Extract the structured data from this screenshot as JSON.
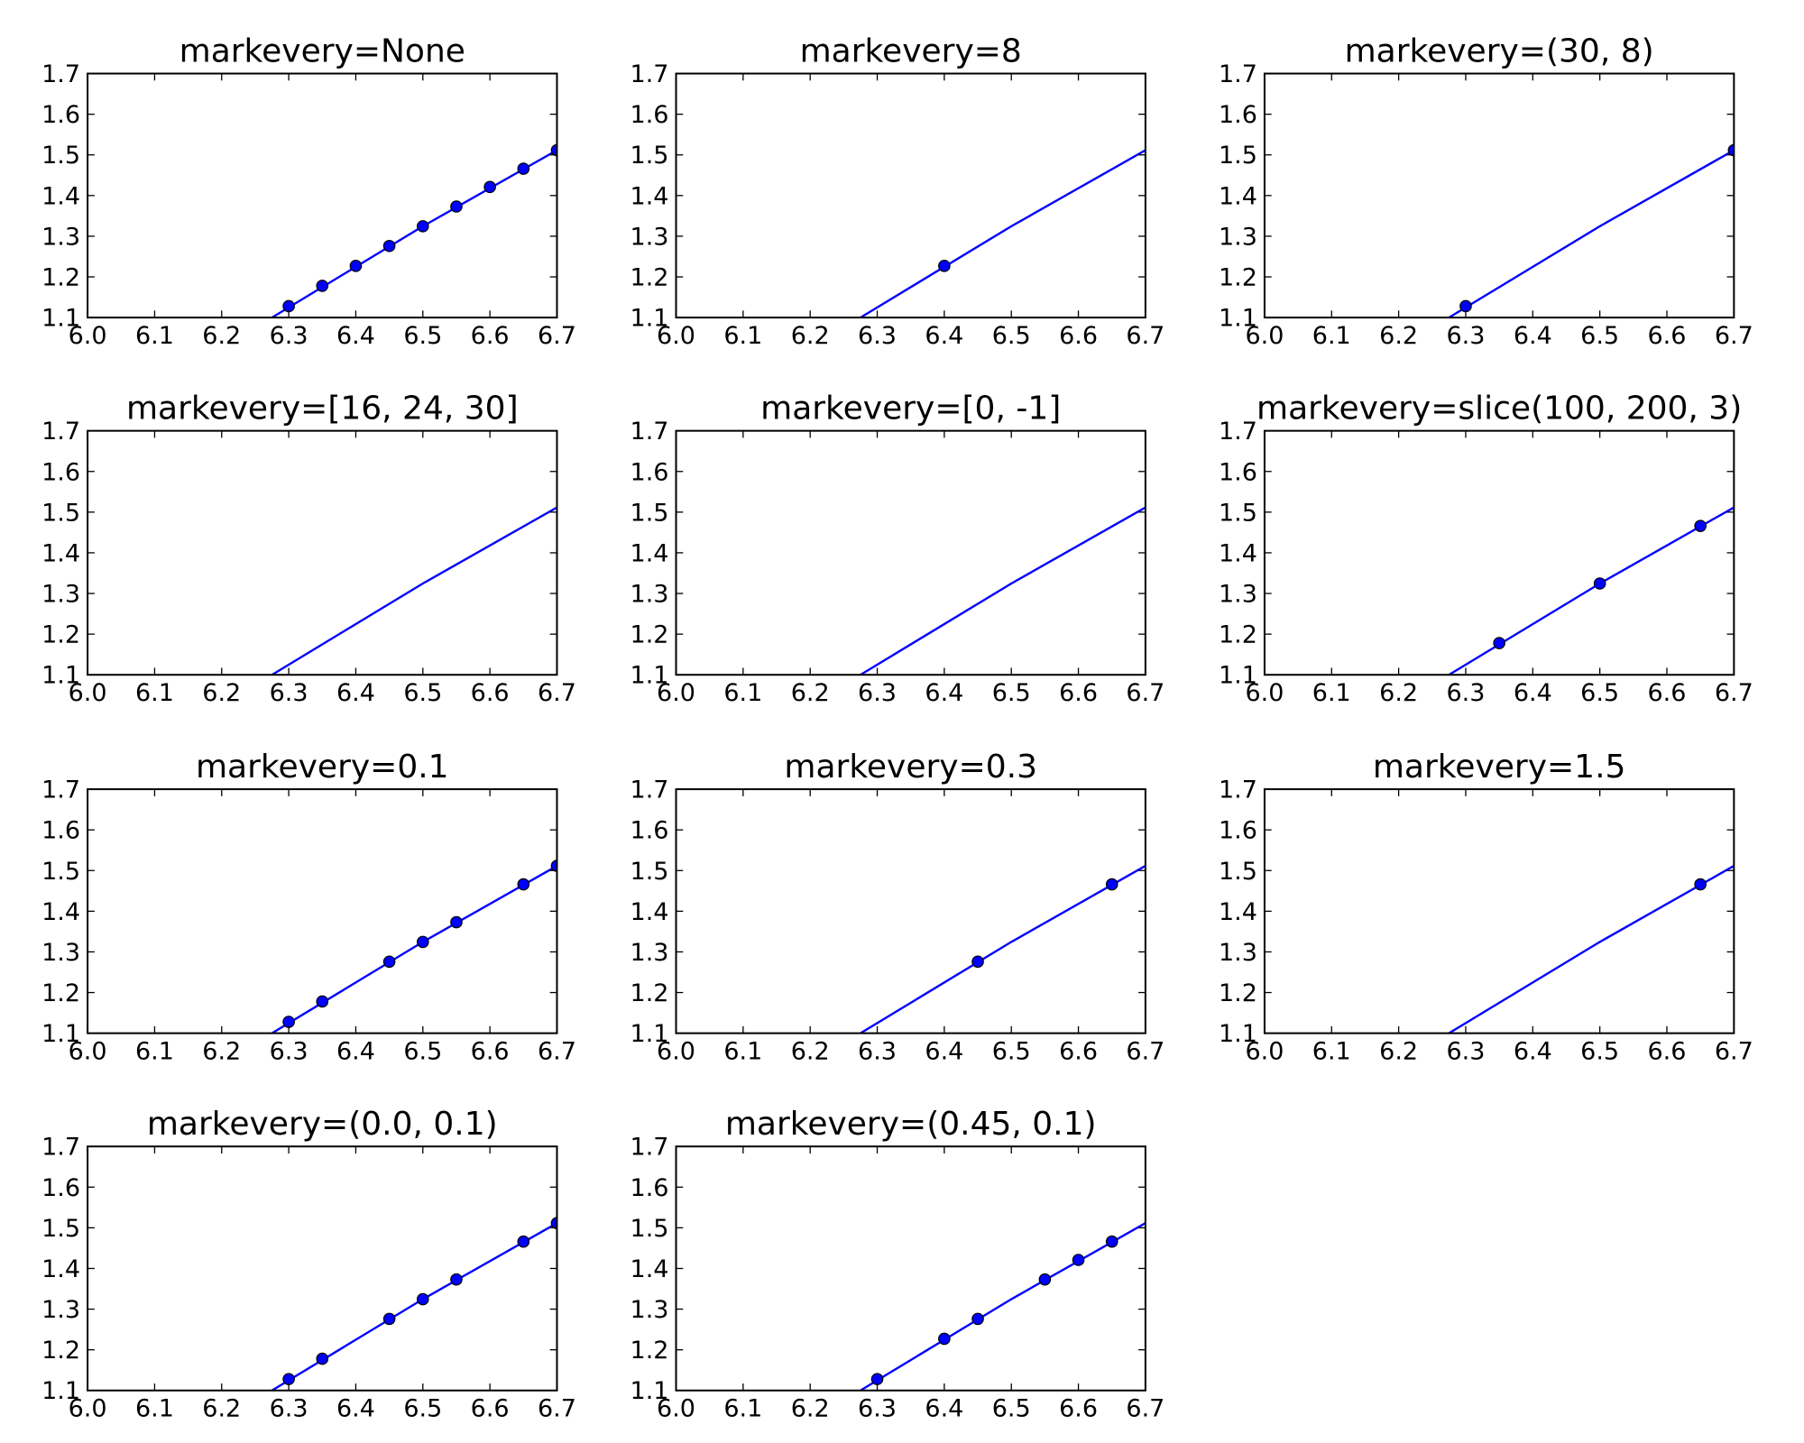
{
  "figure": {
    "line_color": "#0000ff",
    "marker_color": "#0000ff",
    "marker_edge_color": "#000000",
    "background": "#ffffff"
  },
  "chart_data": [
    {
      "type": "line",
      "title": "markevery=None",
      "xlim": [
        6.0,
        6.7
      ],
      "ylim": [
        1.1,
        1.7
      ],
      "xticks": [
        "6.0",
        "6.1",
        "6.2",
        "6.3",
        "6.4",
        "6.5",
        "6.6",
        "6.7"
      ],
      "yticks": [
        "1.1",
        "1.2",
        "1.3",
        "1.4",
        "1.5",
        "1.6",
        "1.7"
      ],
      "series": [
        {
          "line": [
            [
              6.275,
              1.1
            ],
            [
              6.5,
              1.3245
            ],
            [
              6.7,
              1.5115
            ]
          ],
          "markers": [
            [
              6.3,
              1.128
            ],
            [
              6.35,
              1.178
            ],
            [
              6.4,
              1.227
            ],
            [
              6.45,
              1.276
            ],
            [
              6.5,
              1.3245
            ],
            [
              6.55,
              1.373
            ],
            [
              6.6,
              1.421
            ],
            [
              6.65,
              1.466
            ],
            [
              6.7,
              1.5115
            ]
          ]
        }
      ]
    },
    {
      "type": "line",
      "title": "markevery=8",
      "xlim": [
        6.0,
        6.7
      ],
      "ylim": [
        1.1,
        1.7
      ],
      "xticks": [
        "6.0",
        "6.1",
        "6.2",
        "6.3",
        "6.4",
        "6.5",
        "6.6",
        "6.7"
      ],
      "yticks": [
        "1.1",
        "1.2",
        "1.3",
        "1.4",
        "1.5",
        "1.6",
        "1.7"
      ],
      "series": [
        {
          "line": [
            [
              6.275,
              1.1
            ],
            [
              6.5,
              1.3245
            ],
            [
              6.7,
              1.5115
            ]
          ],
          "markers": [
            [
              6.4,
              1.227
            ]
          ]
        }
      ]
    },
    {
      "type": "line",
      "title": "markevery=(30, 8)",
      "xlim": [
        6.0,
        6.7
      ],
      "ylim": [
        1.1,
        1.7
      ],
      "xticks": [
        "6.0",
        "6.1",
        "6.2",
        "6.3",
        "6.4",
        "6.5",
        "6.6",
        "6.7"
      ],
      "yticks": [
        "1.1",
        "1.2",
        "1.3",
        "1.4",
        "1.5",
        "1.6",
        "1.7"
      ],
      "series": [
        {
          "line": [
            [
              6.275,
              1.1
            ],
            [
              6.5,
              1.3245
            ],
            [
              6.7,
              1.5115
            ]
          ],
          "markers": [
            [
              6.3,
              1.128
            ],
            [
              6.7,
              1.5115
            ]
          ]
        }
      ]
    },
    {
      "type": "line",
      "title": "markevery=[16, 24, 30]",
      "xlim": [
        6.0,
        6.7
      ],
      "ylim": [
        1.1,
        1.7
      ],
      "xticks": [
        "6.0",
        "6.1",
        "6.2",
        "6.3",
        "6.4",
        "6.5",
        "6.6",
        "6.7"
      ],
      "yticks": [
        "1.1",
        "1.2",
        "1.3",
        "1.4",
        "1.5",
        "1.6",
        "1.7"
      ],
      "series": [
        {
          "line": [
            [
              6.275,
              1.1
            ],
            [
              6.5,
              1.3245
            ],
            [
              6.7,
              1.5115
            ]
          ],
          "markers": []
        }
      ]
    },
    {
      "type": "line",
      "title": "markevery=[0, -1]",
      "xlim": [
        6.0,
        6.7
      ],
      "ylim": [
        1.1,
        1.7
      ],
      "xticks": [
        "6.0",
        "6.1",
        "6.2",
        "6.3",
        "6.4",
        "6.5",
        "6.6",
        "6.7"
      ],
      "yticks": [
        "1.1",
        "1.2",
        "1.3",
        "1.4",
        "1.5",
        "1.6",
        "1.7"
      ],
      "series": [
        {
          "line": [
            [
              6.275,
              1.1
            ],
            [
              6.5,
              1.3245
            ],
            [
              6.7,
              1.5115
            ]
          ],
          "markers": []
        }
      ]
    },
    {
      "type": "line",
      "title": "markevery=slice(100, 200, 3)",
      "xlim": [
        6.0,
        6.7
      ],
      "ylim": [
        1.1,
        1.7
      ],
      "xticks": [
        "6.0",
        "6.1",
        "6.2",
        "6.3",
        "6.4",
        "6.5",
        "6.6",
        "6.7"
      ],
      "yticks": [
        "1.1",
        "1.2",
        "1.3",
        "1.4",
        "1.5",
        "1.6",
        "1.7"
      ],
      "series": [
        {
          "line": [
            [
              6.275,
              1.1
            ],
            [
              6.5,
              1.3245
            ],
            [
              6.7,
              1.5115
            ]
          ],
          "markers": [
            [
              6.35,
              1.178
            ],
            [
              6.5,
              1.3245
            ],
            [
              6.65,
              1.466
            ]
          ]
        }
      ]
    },
    {
      "type": "line",
      "title": "markevery=0.1",
      "xlim": [
        6.0,
        6.7
      ],
      "ylim": [
        1.1,
        1.7
      ],
      "xticks": [
        "6.0",
        "6.1",
        "6.2",
        "6.3",
        "6.4",
        "6.5",
        "6.6",
        "6.7"
      ],
      "yticks": [
        "1.1",
        "1.2",
        "1.3",
        "1.4",
        "1.5",
        "1.6",
        "1.7"
      ],
      "series": [
        {
          "line": [
            [
              6.275,
              1.1
            ],
            [
              6.5,
              1.3245
            ],
            [
              6.7,
              1.5115
            ]
          ],
          "markers": [
            [
              6.3,
              1.128
            ],
            [
              6.35,
              1.178
            ],
            [
              6.45,
              1.276
            ],
            [
              6.5,
              1.3245
            ],
            [
              6.55,
              1.373
            ],
            [
              6.65,
              1.466
            ],
            [
              6.7,
              1.5115
            ]
          ]
        }
      ]
    },
    {
      "type": "line",
      "title": "markevery=0.3",
      "xlim": [
        6.0,
        6.7
      ],
      "ylim": [
        1.1,
        1.7
      ],
      "xticks": [
        "6.0",
        "6.1",
        "6.2",
        "6.3",
        "6.4",
        "6.5",
        "6.6",
        "6.7"
      ],
      "yticks": [
        "1.1",
        "1.2",
        "1.3",
        "1.4",
        "1.5",
        "1.6",
        "1.7"
      ],
      "series": [
        {
          "line": [
            [
              6.275,
              1.1
            ],
            [
              6.5,
              1.3245
            ],
            [
              6.7,
              1.5115
            ]
          ],
          "markers": [
            [
              6.45,
              1.276
            ],
            [
              6.65,
              1.466
            ]
          ]
        }
      ]
    },
    {
      "type": "line",
      "title": "markevery=1.5",
      "xlim": [
        6.0,
        6.7
      ],
      "ylim": [
        1.1,
        1.7
      ],
      "xticks": [
        "6.0",
        "6.1",
        "6.2",
        "6.3",
        "6.4",
        "6.5",
        "6.6",
        "6.7"
      ],
      "yticks": [
        "1.1",
        "1.2",
        "1.3",
        "1.4",
        "1.5",
        "1.6",
        "1.7"
      ],
      "series": [
        {
          "line": [
            [
              6.275,
              1.1
            ],
            [
              6.5,
              1.3245
            ],
            [
              6.7,
              1.5115
            ]
          ],
          "markers": [
            [
              6.65,
              1.466
            ]
          ]
        }
      ]
    },
    {
      "type": "line",
      "title": "markevery=(0.0, 0.1)",
      "xlim": [
        6.0,
        6.7
      ],
      "ylim": [
        1.1,
        1.7
      ],
      "xticks": [
        "6.0",
        "6.1",
        "6.2",
        "6.3",
        "6.4",
        "6.5",
        "6.6",
        "6.7"
      ],
      "yticks": [
        "1.1",
        "1.2",
        "1.3",
        "1.4",
        "1.5",
        "1.6",
        "1.7"
      ],
      "series": [
        {
          "line": [
            [
              6.275,
              1.1
            ],
            [
              6.5,
              1.3245
            ],
            [
              6.7,
              1.5115
            ]
          ],
          "markers": [
            [
              6.3,
              1.128
            ],
            [
              6.35,
              1.178
            ],
            [
              6.45,
              1.276
            ],
            [
              6.5,
              1.3245
            ],
            [
              6.55,
              1.373
            ],
            [
              6.65,
              1.466
            ],
            [
              6.7,
              1.5115
            ]
          ]
        }
      ]
    },
    {
      "type": "line",
      "title": "markevery=(0.45, 0.1)",
      "xlim": [
        6.0,
        6.7
      ],
      "ylim": [
        1.1,
        1.7
      ],
      "xticks": [
        "6.0",
        "6.1",
        "6.2",
        "6.3",
        "6.4",
        "6.5",
        "6.6",
        "6.7"
      ],
      "yticks": [
        "1.1",
        "1.2",
        "1.3",
        "1.4",
        "1.5",
        "1.6",
        "1.7"
      ],
      "series": [
        {
          "line": [
            [
              6.275,
              1.1
            ],
            [
              6.5,
              1.3245
            ],
            [
              6.7,
              1.5115
            ]
          ],
          "markers": [
            [
              6.3,
              1.128
            ],
            [
              6.4,
              1.227
            ],
            [
              6.45,
              1.276
            ],
            [
              6.55,
              1.373
            ],
            [
              6.6,
              1.421
            ],
            [
              6.65,
              1.466
            ]
          ]
        }
      ]
    }
  ]
}
